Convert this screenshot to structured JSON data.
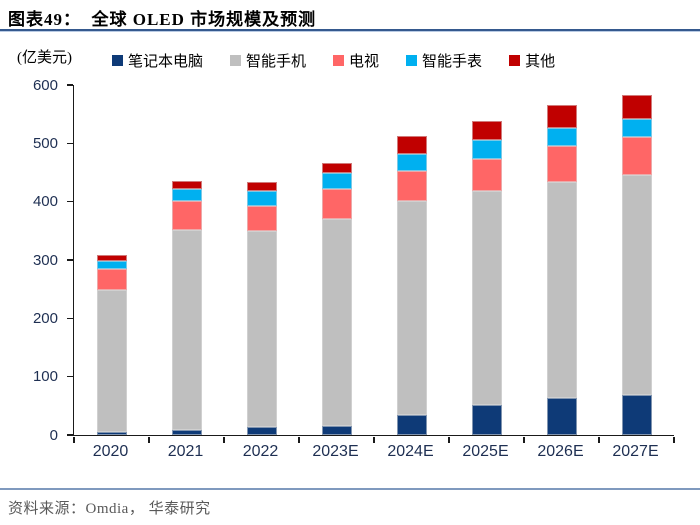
{
  "header": {
    "title": "图表49：  全球 OLED 市场规模及预测",
    "unit_label": "(亿美元)"
  },
  "footer": {
    "source": "资料来源：Omdia， 华泰研究"
  },
  "colors": {
    "laptop_navy": "#0E3A77",
    "smartphone_gray": "#BFBFBF",
    "tv_salmon": "#FF6666",
    "watch_cyan": "#00B0F0",
    "other_darkred": "#C00000",
    "title_rule_blue": "#35598E",
    "footer_rule_blue": "#7F99BE",
    "axis_black": "#1a1a1a",
    "tick_label_navy": "#1e2f52",
    "source_gray": "#595959"
  },
  "chart_data": {
    "type": "bar",
    "variant": "stacked",
    "title": "图表49： 全球 OLED 市场规模及预测",
    "ylabel": "(亿美元)",
    "xlabel": "",
    "categories": [
      "2020",
      "2021",
      "2022",
      "2023E",
      "2024E",
      "2025E",
      "2026E",
      "2027E"
    ],
    "series": [
      {
        "name": "笔记本电脑",
        "color": "#0E3A77",
        "values": [
          5,
          8,
          13,
          16,
          34,
          51,
          63,
          69
        ]
      },
      {
        "name": "智能手机",
        "color": "#BFBFBF",
        "values": [
          243,
          344,
          336,
          355,
          368,
          368,
          371,
          376
        ]
      },
      {
        "name": "电视",
        "color": "#FF6666",
        "values": [
          37,
          49,
          44,
          50,
          50,
          54,
          62,
          66
        ]
      },
      {
        "name": "智能手表",
        "color": "#00B0F0",
        "values": [
          13,
          20,
          25,
          28,
          30,
          32,
          31,
          30
        ]
      },
      {
        "name": "其他",
        "color": "#C00000",
        "values": [
          10,
          14,
          15,
          18,
          30,
          34,
          39,
          42
        ]
      }
    ],
    "totals": [
      308,
      435,
      433,
      467,
      512,
      539,
      566,
      583
    ],
    "ylim": [
      0,
      600
    ],
    "yticks": [
      0,
      100,
      200,
      300,
      400,
      500,
      600
    ],
    "grid": false,
    "legend_position": "top"
  }
}
